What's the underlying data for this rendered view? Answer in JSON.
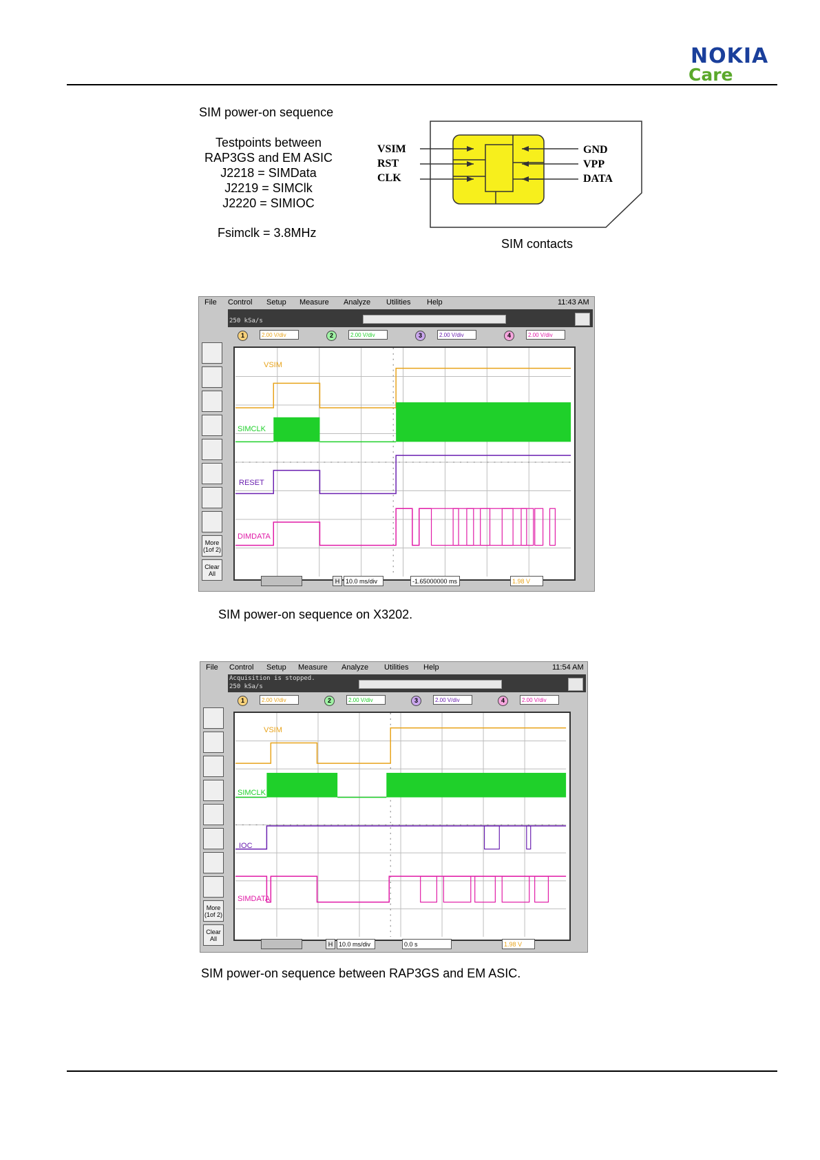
{
  "header": {
    "brand": "NOKIA",
    "brand_sub": "Care"
  },
  "intro": {
    "title": "SIM power-on sequence",
    "testpoints_lines": [
      "Testpoints between",
      "RAP3GS and EM ASIC",
      "J2218 = SIMData",
      "J2219 = SIMClk",
      "J2220 = SIMIOC"
    ],
    "fsimclk": "Fsimclk = 3.8MHz"
  },
  "sim_diagram": {
    "left_labels": [
      "VSIM",
      "RST",
      "CLK"
    ],
    "right_labels": [
      "GND",
      "VPP",
      "DATA"
    ],
    "caption": "SIM contacts",
    "chip_color": "#f7ef1c"
  },
  "scope1": {
    "menu": [
      "File",
      "Control",
      "Setup",
      "Measure",
      "Analyze",
      "Utilities",
      "Help"
    ],
    "time": "11:43 AM",
    "status_lines": [
      "250 kSa/s"
    ],
    "channels": [
      {
        "num": "1",
        "value": "2.00 V/div",
        "color": "#e8a31a"
      },
      {
        "num": "2",
        "value": "2.00 V/div",
        "color": "#1fd02a"
      },
      {
        "num": "3",
        "value": "2.00 V/div",
        "color": "#6a1fb0"
      },
      {
        "num": "4",
        "value": "2.00 V/div",
        "color": "#e01aa6"
      }
    ],
    "trace_labels": [
      "VSIM",
      "SIMCLK",
      "RESET",
      "DIMDATA"
    ],
    "side_more": "More (1of 2)",
    "side_clear": "Clear All",
    "timebase": "10.0 ms/div",
    "delay": "-1.65000000 ms",
    "trigger_level": "1.98 V",
    "caption": "SIM power-on sequence on X3202."
  },
  "scope2": {
    "menu": [
      "File",
      "Control",
      "Setup",
      "Measure",
      "Analyze",
      "Utilities",
      "Help"
    ],
    "time": "11:54 AM",
    "status_lines": [
      "Acquisition is stopped.",
      "250 kSa/s"
    ],
    "channels": [
      {
        "num": "1",
        "value": "2.00 V/div",
        "color": "#e8a31a"
      },
      {
        "num": "2",
        "value": "2.00 V/div",
        "color": "#1fd02a"
      },
      {
        "num": "3",
        "value": "2.00 V/div",
        "color": "#6a1fb0"
      },
      {
        "num": "4",
        "value": "2.00 V/div",
        "color": "#e01aa6"
      }
    ],
    "trace_labels": [
      "VSIM",
      "SIMCLK",
      "IOC",
      "SIMDATA"
    ],
    "side_more": "More (1of 2)",
    "side_clear": "Clear All",
    "timebase": "10.0 ms/div",
    "delay": "0.0 s",
    "trigger_level": "1.98 V",
    "caption": "SIM power-on sequence between RAP3GS and EM ASIC."
  }
}
